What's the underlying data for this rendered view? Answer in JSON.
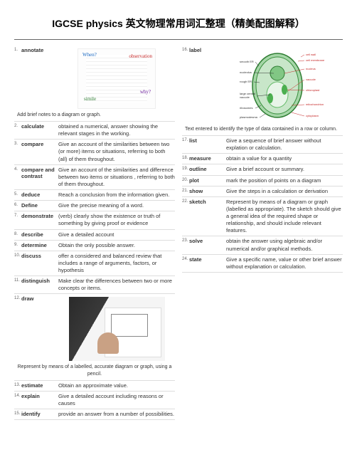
{
  "title": "IGCSE physics 英文物理常用词汇整理（精美配图解释）",
  "left": [
    {
      "n": "1.",
      "t": "annotate",
      "d": "",
      "img": "annotate",
      "caption": "Add brief notes to a diagram or graph."
    },
    {
      "n": "2.",
      "t": "calculate",
      "d": "obtained a numerical, answer showing the relevant stages in the working."
    },
    {
      "n": "3.",
      "t": "compare",
      "d": "Give an account of the similarities between two (or more) items or situations, referring to both (all) of them throughout."
    },
    {
      "n": "4.",
      "t": "compare and contrast",
      "d": "Give an account of the similarities and difference between two items or situations , referring to both of them throughout."
    },
    {
      "n": "5.",
      "t": "deduce",
      "d": "Reach a conclusion from the information given."
    },
    {
      "n": "6.",
      "t": "Define",
      "d": "Give the precise meaning of a word."
    },
    {
      "n": "7.",
      "t": "demonstrate",
      "d": "(verb) clearly show the existence or truth of something by giving proof or evidence"
    },
    {
      "n": "8.",
      "t": "describe",
      "d": "Give a detailed account"
    },
    {
      "n": "9.",
      "t": "determine",
      "d": "Obtain the only possible answer."
    },
    {
      "n": "10.",
      "t": "discuss",
      "d": "offer a considered and balanced review that includes a range of arguments, factors, or hypothesis"
    },
    {
      "n": "11.",
      "t": "distinguish",
      "d": "Make clear the differences between two or more concepts or items."
    },
    {
      "n": "12.",
      "t": "draw",
      "d": "",
      "img": "draw",
      "caption": "Represent by means of a labelled, accurate diagram or graph, using a pencil."
    },
    {
      "n": "13.",
      "t": "estimate",
      "d": "Obtain an approximate value."
    },
    {
      "n": "14.",
      "t": "explain",
      "d": "Give a detailed account including reasons or causes"
    },
    {
      "n": "15.",
      "t": "identify",
      "d": "provide an answer from a number of possibilities."
    }
  ],
  "right": [
    {
      "n": "16.",
      "t": "label",
      "d": "",
      "img": "cell",
      "caption": "Text entered to identify the type of data contained in a row or column."
    },
    {
      "n": "17.",
      "t": "list",
      "d": "Give a sequence of brief answer without explation or calculation."
    },
    {
      "n": "18.",
      "t": "measure",
      "d": "obtain a value for a quantity"
    },
    {
      "n": "19.",
      "t": "outline",
      "d": "Give a brief account or summary."
    },
    {
      "n": "20.",
      "t": "plot",
      "d": "mark the position of points on a diagram"
    },
    {
      "n": "21.",
      "t": "show",
      "d": "Give the steps in a calculation or derivation"
    },
    {
      "n": "22.",
      "t": "sketch",
      "d": "Represent by means of a diagram or graph (labelled as appropriate). The sketch should give a general idea of the required shape or relationship, and should include relevant features."
    },
    {
      "n": "23.",
      "t": "solve",
      "d": "obtain the answer using algebraic and/or numerical and/or graphical methods."
    },
    {
      "n": "24.",
      "t": "state",
      "d": "Give a specific name, value or other brief answer without explanation or calculation."
    }
  ]
}
